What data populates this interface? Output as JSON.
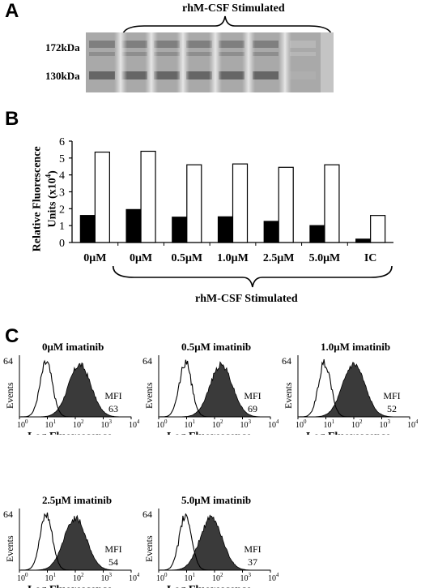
{
  "panelA": {
    "letter": "A",
    "group_label": "rhM-CSF Stimulated",
    "lane_labels": [
      "0μM",
      "0μM",
      "0.5μM",
      "1.0μM",
      "2.5μM",
      "5.0μM",
      "IC"
    ],
    "markers": [
      "172kDa",
      "130kDa"
    ]
  },
  "panelB": {
    "letter": "B",
    "group_label": "rhM-CSF Stimulated",
    "ylabel_line1": "Relative Fluorescence",
    "ylabel_line2": "Units (x10",
    "ylabel_sup": "4",
    "ylabel_close": ")"
  },
  "panelC": {
    "letter": "C",
    "xlabel": "Log Fluorescence",
    "ylabel": "Events",
    "ymax_label": "64",
    "mfi_label": "MFI",
    "histograms": [
      {
        "title": "0μM imatinib",
        "mfi": "63"
      },
      {
        "title": "0.5μM imatinib",
        "mfi": "69"
      },
      {
        "title": "1.0μM imatinib",
        "mfi": "52"
      },
      {
        "title": "2.5μM imatinib",
        "mfi": "54"
      },
      {
        "title": "5.0μM imatinib",
        "mfi": "37"
      }
    ]
  },
  "chart_data": {
    "type": "bar",
    "categories": [
      "0μM",
      "0μM",
      "0.5μM",
      "1.0μM",
      "2.5μM",
      "5.0μM",
      "IC"
    ],
    "series": [
      {
        "values": [
          1.6,
          1.95,
          1.5,
          1.52,
          1.25,
          1.0,
          0.2
        ],
        "color": "#000000"
      },
      {
        "values": [
          5.35,
          5.4,
          4.6,
          4.65,
          4.45,
          4.6,
          1.6
        ],
        "color": "#ffffff"
      }
    ],
    "ylim": [
      0,
      6
    ],
    "yticks": [
      0,
      1,
      2,
      3,
      4,
      5,
      6
    ],
    "grid": false
  }
}
